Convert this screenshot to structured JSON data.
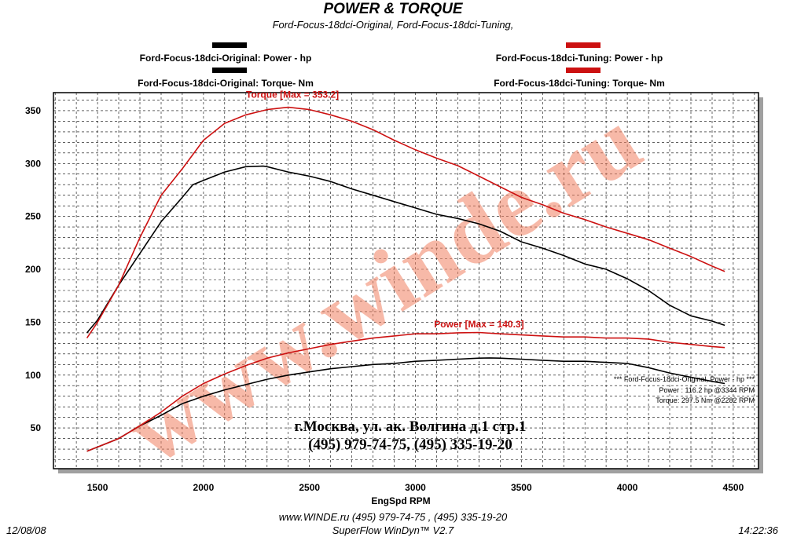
{
  "chart_data": {
    "type": "line",
    "title": "POWER & TORQUE",
    "subtitle": "Ford-Focus-18dci-Original, Ford-Focus-18dci-Tuning,",
    "xlabel": "EngSpd  RPM",
    "ylabel": "",
    "xlim": [
      1292,
      4619
    ],
    "ylim": [
      11.5,
      367
    ],
    "xticks": [
      1500,
      2000,
      2500,
      3000,
      3500,
      4000,
      4500
    ],
    "yticks": [
      50,
      100,
      150,
      200,
      250,
      300,
      350
    ],
    "grid": true,
    "series": [
      {
        "name": "Ford-Focus-18dci-Original: Power -  hp",
        "color": "#000000",
        "x": [
          1450,
          1600,
          1700,
          1800,
          1900,
          2000,
          2100,
          2200,
          2300,
          2400,
          2500,
          2600,
          2700,
          2800,
          2900,
          3000,
          3100,
          3200,
          3300,
          3350,
          3400,
          3500,
          3600,
          3700,
          3800,
          3900,
          4000,
          4100,
          4200,
          4300,
          4400,
          4460
        ],
        "y": [
          28,
          40,
          52,
          62,
          73,
          80,
          86,
          91,
          96,
          100,
          103,
          106,
          108,
          110,
          111,
          113,
          114,
          115,
          116,
          116.2,
          116,
          115,
          114,
          113,
          113,
          112,
          111,
          107,
          102,
          98,
          94,
          92
        ]
      },
      {
        "name": "Ford-Focus-18dci-Original: Torque-  Nm",
        "color": "#000000",
        "x": [
          1450,
          1500,
          1600,
          1700,
          1800,
          1900,
          1950,
          2000,
          2100,
          2200,
          2282,
          2300,
          2400,
          2500,
          2600,
          2700,
          2800,
          2900,
          3000,
          3100,
          3200,
          3300,
          3400,
          3500,
          3600,
          3700,
          3800,
          3900,
          4000,
          4100,
          4200,
          4300,
          4400,
          4460
        ],
        "y": [
          140,
          152,
          185,
          215,
          245,
          268,
          280,
          284,
          292,
          297,
          297.5,
          297,
          292,
          288,
          283,
          276,
          270,
          264,
          258,
          252,
          248,
          243,
          236,
          226,
          220,
          213,
          205,
          200,
          191,
          180,
          166,
          156,
          151,
          147
        ]
      },
      {
        "name": "Ford-Focus-18dci-Tuning: Power -  hp",
        "color": "#cc1111",
        "x": [
          1450,
          1600,
          1700,
          1800,
          1900,
          2000,
          2100,
          2200,
          2300,
          2400,
          2500,
          2600,
          2700,
          2800,
          2900,
          3000,
          3100,
          3200,
          3300,
          3400,
          3500,
          3600,
          3700,
          3800,
          3900,
          4000,
          4100,
          4200,
          4300,
          4400,
          4460
        ],
        "y": [
          28,
          40,
          52,
          65,
          80,
          92,
          101,
          109,
          116,
          121,
          125,
          129,
          132,
          135,
          137,
          139,
          139,
          140,
          140.3,
          139,
          138,
          137,
          136,
          136,
          135,
          135,
          134,
          131,
          129,
          127,
          126
        ]
      },
      {
        "name": "Ford-Focus-18dci-Tuning: Torque-  Nm",
        "color": "#cc1111",
        "x": [
          1450,
          1500,
          1600,
          1700,
          1800,
          1900,
          2000,
          2100,
          2200,
          2300,
          2400,
          2500,
          2600,
          2700,
          2800,
          2900,
          3000,
          3100,
          3200,
          3300,
          3400,
          3500,
          3600,
          3700,
          3800,
          3900,
          4000,
          4100,
          4200,
          4300,
          4400,
          4460
        ],
        "y": [
          135,
          150,
          185,
          230,
          270,
          295,
          322,
          338,
          346,
          351,
          353.2,
          351,
          346,
          340,
          332,
          322,
          313,
          305,
          298,
          288,
          278,
          268,
          261,
          253,
          247,
          240,
          234,
          228,
          220,
          212,
          203,
          198
        ]
      }
    ],
    "annotations": [
      {
        "text": "Torque [Max = 353.2]",
        "x": 2420,
        "y": 362,
        "color": "#cc1111"
      },
      {
        "text": "Power  [Max = 140.3]",
        "x": 3300,
        "y": 145,
        "color": "#cc1111"
      }
    ],
    "stats": [
      "*** Ford-Focus-18dci-Original, Power - hp  ***",
      "Power :  116.2 hp      @3344 RPM",
      "Torque:  297.5 Nm      @2282 RPM"
    ],
    "address": [
      "г.Москва, ул. ак. Волгина д.1 стр.1",
      "(495) 979-74-75, (495) 335-19-20"
    ],
    "watermark": "www.winde.ru"
  },
  "footer": {
    "line1": "www.WINDE.ru  (495) 979-74-75 , (495) 335-19-20",
    "line2": "SuperFlow WinDyn™ V2.7",
    "date": "12/08/08",
    "time": "14:22:36"
  },
  "colors": {
    "original": "#000000",
    "tuning": "#cc1111",
    "watermark": "#f08060",
    "grid": "#000000"
  }
}
